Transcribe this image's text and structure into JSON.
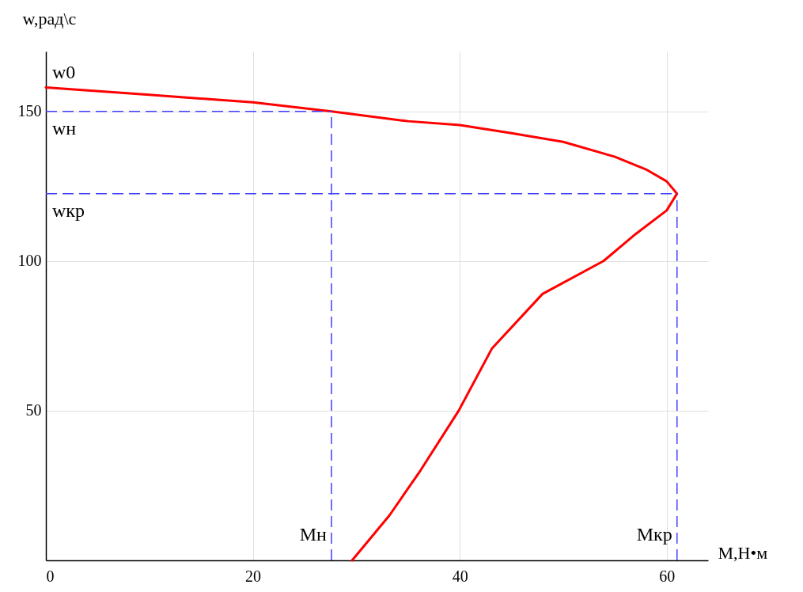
{
  "chart_data": {
    "type": "line",
    "xlabel": "M,Н•м",
    "ylabel": "w,рад\\с",
    "x": [
      0,
      10,
      20,
      27.6,
      35,
      40,
      45,
      50,
      55,
      58,
      60,
      61,
      60,
      57,
      53.9,
      48,
      43.1,
      39.9,
      36.2,
      33.2,
      29.6
    ],
    "series": [
      {
        "color": "#ff0000",
        "values": [
          158,
          155.5,
          153,
          150,
          146.7,
          145.4,
          142.7,
          139.8,
          134.8,
          130.6,
          126.6,
          122.5,
          116.9,
          109,
          100,
          89,
          70.7,
          50,
          30,
          15,
          0
        ]
      }
    ],
    "xlim": [
      0,
      64
    ],
    "ylim": [
      0,
      170
    ],
    "xticks": [
      0,
      20,
      40,
      60
    ],
    "yticks": [
      50,
      100,
      150
    ],
    "grid": true,
    "marker": "none",
    "line_style": "solid",
    "ref_lines": [
      {
        "axis": "y",
        "value": 150,
        "label": "wн",
        "color": "#4040ff",
        "line_style": "dashed"
      },
      {
        "axis": "y",
        "value": 122.5,
        "label": "wкр",
        "color": "#4040ff",
        "line_style": "dashed"
      },
      {
        "axis": "x",
        "value": 27.6,
        "label": "Mн",
        "color": "#4040ff",
        "line_style": "dashed"
      },
      {
        "axis": "x",
        "value": 61,
        "label": "Mкр",
        "color": "#4040ff",
        "line_style": "dashed"
      }
    ],
    "annotations": [
      {
        "text": "w0",
        "x": 0,
        "y": 158
      }
    ]
  }
}
